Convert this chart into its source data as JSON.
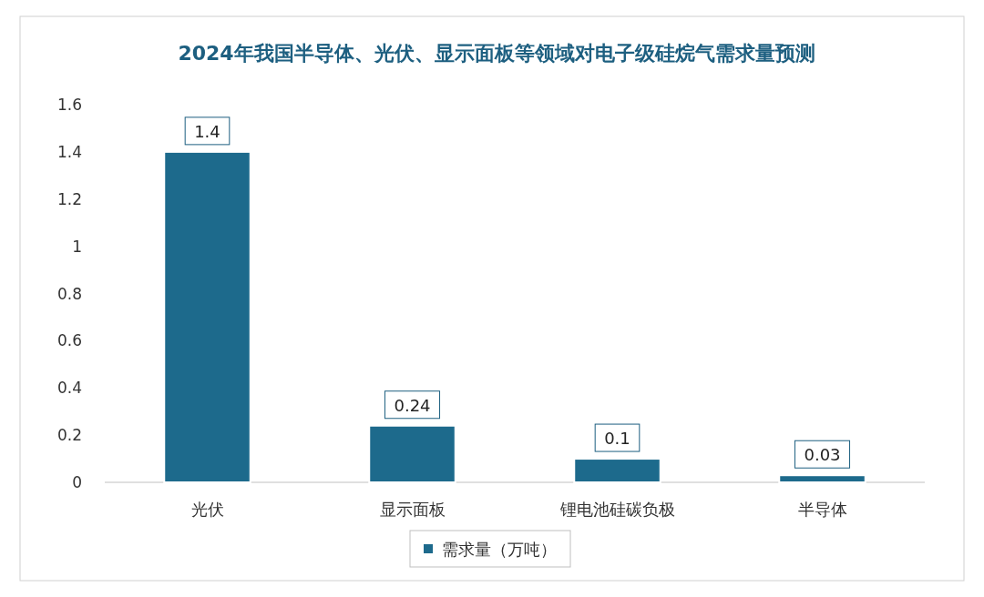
{
  "chart_data": {
    "type": "bar",
    "title": "2024年我国半导体、光伏、显示面板等领域对电子级硅烷气需求量预测",
    "categories": [
      "光伏",
      "显示面板",
      "锂电池硅碳负极",
      "半导体"
    ],
    "series": [
      {
        "name": "需求量（万吨）",
        "color": "#1d6a8c",
        "values": [
          1.4,
          0.24,
          0.1,
          0.03
        ]
      }
    ],
    "ylim": [
      0,
      1.6
    ],
    "yticks": [
      0,
      0.2,
      0.4,
      0.6,
      0.8,
      1,
      1.2,
      1.4,
      1.6
    ],
    "data_labels": true,
    "legend": "bottom"
  }
}
